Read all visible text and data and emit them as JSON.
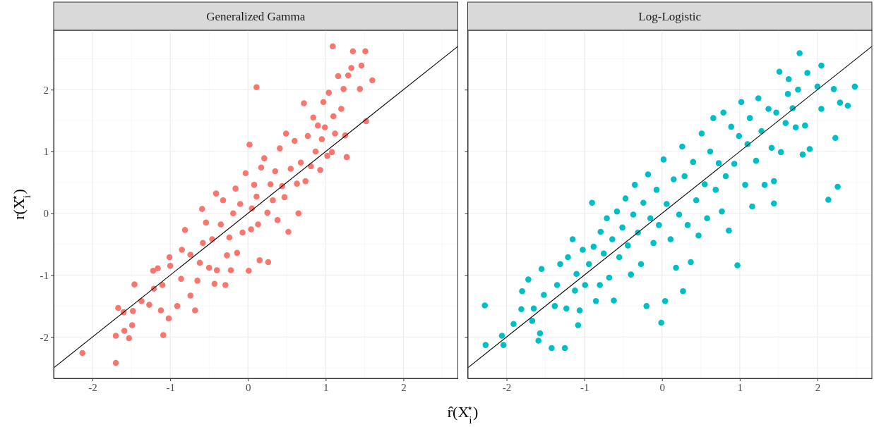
{
  "chart_data": [
    {
      "type": "scatter",
      "title": "Generalized Gamma",
      "xlabel": "r̂(X$_{i}$$^{⋆}$)",
      "ylabel": "r(X$_{i}$$^{⋆}$)",
      "xlim": [
        -2.5,
        2.7
      ],
      "ylim": [
        -2.67,
        2.96
      ],
      "xticks": [
        -2,
        -1,
        0,
        1,
        2
      ],
      "yticks": [
        -2,
        -1,
        0,
        1,
        2
      ],
      "grid": true,
      "series": [
        {
          "color": "#f8766d",
          "marker": "circle",
          "x": [
            -2.13,
            -1.7,
            -1.7,
            -1.59,
            -1.53,
            -1.49,
            -1.67,
            -1.6,
            -1.48,
            -1.46,
            -1.37,
            -1.27,
            -1.21,
            -1.22,
            -1.16,
            -1.1,
            -1.09,
            -1.02,
            -1.01,
            -1.0,
            -1.12,
            -0.91,
            -0.86,
            -0.85,
            -0.81,
            -0.74,
            -0.74,
            -0.68,
            -0.65,
            -0.62,
            -0.58,
            -0.59,
            -0.54,
            -0.5,
            -0.46,
            -0.43,
            -0.4,
            -0.41,
            -0.35,
            -0.32,
            -0.29,
            -0.27,
            -0.24,
            -0.22,
            -0.19,
            -0.16,
            -0.14,
            -0.1,
            -0.07,
            -0.03,
            0.01,
            0.02,
            0.04,
            0.05,
            0.08,
            0.11,
            0.13,
            0.15,
            0.17,
            0.21,
            0.25,
            0.26,
            0.29,
            0.32,
            0.35,
            0.38,
            0.41,
            0.44,
            0.47,
            0.49,
            0.52,
            0.55,
            0.6,
            0.63,
            0.65,
            0.68,
            0.72,
            0.74,
            0.77,
            0.81,
            0.84,
            0.87,
            0.9,
            0.93,
            0.95,
            0.97,
            0.99,
            1.02,
            1.04,
            1.08,
            1.1,
            1.12,
            1.16,
            1.2,
            1.23,
            1.25,
            1.27,
            1.29,
            1.33,
            1.09,
            1.35,
            1.44,
            1.46,
            1.51,
            1.52,
            1.6,
            0.11
          ],
          "values": [
            -2.26,
            -2.42,
            -1.98,
            -1.9,
            -2.02,
            -1.81,
            -1.53,
            -1.6,
            -1.58,
            -1.15,
            -1.42,
            -1.48,
            -1.22,
            -0.93,
            -0.89,
            -1.16,
            -1.97,
            -1.7,
            -0.71,
            -0.85,
            -1.57,
            -1.5,
            -1.06,
            -0.59,
            -0.27,
            -1.33,
            -0.67,
            -1.57,
            -1.09,
            -0.8,
            -0.48,
            0.07,
            -0.15,
            -0.88,
            -0.42,
            -1.14,
            -0.92,
            0.32,
            -0.18,
            0.21,
            -1.16,
            -0.68,
            -0.39,
            -0.92,
            0.0,
            0.4,
            -0.64,
            0.15,
            -0.31,
            0.65,
            -0.93,
            1.11,
            -0.26,
            0.08,
            0.46,
            0.27,
            -0.18,
            -0.76,
            0.74,
            0.89,
            0.01,
            -0.79,
            0.47,
            0.21,
            0.68,
            -0.11,
            1.05,
            0.44,
            0.26,
            1.29,
            -0.3,
            0.72,
            1.17,
            0.48,
            0.0,
            0.82,
            1.78,
            0.52,
            1.25,
            0.76,
            1.55,
            1.0,
            1.42,
            0.7,
            1.2,
            1.8,
            1.39,
            0.93,
            1.95,
            0.99,
            1.57,
            1.29,
            2.22,
            1.69,
            2.01,
            1.26,
            0.91,
            2.23,
            2.35,
            2.7,
            2.62,
            2.01,
            2.39,
            2.62,
            1.49,
            2.15,
            2.04
          ]
        },
        {
          "type": "line",
          "color": "#000000",
          "marker": "none",
          "x": [
            -2.5,
            2.7
          ],
          "values": [
            -2.5,
            2.7
          ]
        }
      ]
    },
    {
      "type": "scatter",
      "title": "Log-Logistic",
      "xlim": [
        -2.5,
        2.7
      ],
      "ylim": [
        -2.67,
        2.96
      ],
      "xticks": [
        -2,
        -1,
        0,
        1,
        2
      ],
      "yticks": [
        -2,
        -1,
        0,
        1,
        2
      ],
      "grid": true,
      "tick_labels": "x",
      "series": [
        {
          "color": "#00bfc4",
          "marker": "circle",
          "x": [
            -2.28,
            -2.27,
            -2.06,
            -2.04,
            -1.91,
            -1.8,
            -1.81,
            -1.72,
            -1.67,
            -1.65,
            -1.59,
            -1.57,
            -1.55,
            -1.52,
            -1.42,
            -1.38,
            -1.35,
            -1.31,
            -1.25,
            -1.23,
            -1.21,
            -1.15,
            -1.12,
            -1.1,
            -1.08,
            -1.06,
            -1.02,
            -0.99,
            -0.94,
            -0.9,
            -0.88,
            -0.85,
            -0.8,
            -0.79,
            -0.75,
            -0.71,
            -0.68,
            -0.64,
            -0.62,
            -0.58,
            -0.55,
            -0.51,
            -0.47,
            -0.44,
            -0.4,
            -0.37,
            -0.35,
            -0.31,
            -0.27,
            -0.24,
            -0.2,
            -0.18,
            -0.15,
            -0.11,
            -0.07,
            -0.04,
            -0.01,
            0.02,
            0.04,
            0.06,
            0.11,
            0.15,
            0.18,
            0.22,
            0.26,
            0.27,
            0.29,
            0.33,
            0.37,
            0.4,
            0.44,
            0.47,
            0.51,
            0.55,
            0.58,
            0.62,
            0.66,
            0.69,
            0.73,
            0.77,
            0.79,
            0.82,
            0.86,
            0.89,
            0.93,
            0.97,
            0.99,
            1.02,
            1.07,
            1.1,
            1.13,
            1.16,
            1.21,
            1.24,
            1.28,
            1.32,
            1.37,
            1.41,
            1.44,
            1.47,
            1.44,
            1.51,
            1.53,
            1.59,
            1.62,
            1.63,
            1.68,
            1.72,
            1.75,
            1.77,
            1.81,
            1.84,
            1.87,
            1.9,
            2.0,
            2.05,
            2.05,
            2.14,
            2.21,
            2.23,
            2.26,
            2.29,
            2.39,
            2.48
          ],
          "values": [
            -1.49,
            -2.13,
            -1.98,
            -2.13,
            -1.79,
            -1.26,
            -1.55,
            -1.07,
            -1.74,
            -1.54,
            -2.06,
            -1.94,
            -0.9,
            -1.32,
            -2.18,
            -1.5,
            -1.16,
            -0.82,
            -2.18,
            -1.54,
            -0.71,
            -0.42,
            -1.25,
            -0.98,
            -1.81,
            -1.57,
            -0.59,
            -1.16,
            -0.82,
            0.17,
            -0.54,
            -1.42,
            -1.16,
            -0.3,
            -0.65,
            -0.08,
            -1.04,
            -0.42,
            -1.41,
            0.03,
            -0.71,
            -0.23,
            0.24,
            -0.52,
            -0.99,
            -0.02,
            0.46,
            -0.31,
            -0.82,
            0.17,
            -1.5,
            0.63,
            -0.08,
            -0.48,
            0.38,
            -0.19,
            -1.77,
            0.87,
            -1.42,
            0.15,
            -0.42,
            0.55,
            -0.88,
            -0.02,
            1.08,
            -1.26,
            0.6,
            -0.19,
            -0.79,
            0.83,
            0.21,
            -0.36,
            1.29,
            0.47,
            -0.08,
            1.0,
            1.54,
            0.38,
            0.81,
            0.03,
            1.63,
            0.6,
            -0.28,
            1.4,
            0.8,
            -0.84,
            1.25,
            1.8,
            0.46,
            1.12,
            1.54,
            0.11,
            0.85,
            1.86,
            1.33,
            0.46,
            1.69,
            1.06,
            0.52,
            1.63,
            0.16,
            2.29,
            0.99,
            1.46,
            1.93,
            2.17,
            1.7,
            1.39,
            2.0,
            2.59,
            0.95,
            1.42,
            2.27,
            1.04,
            2.05,
            2.39,
            1.69,
            0.22,
            2.01,
            1.22,
            0.43,
            1.79,
            1.74,
            2.05
          ]
        },
        {
          "type": "line",
          "color": "#000000",
          "marker": "none",
          "x": [
            -2.5,
            2.7
          ],
          "values": [
            -2.5,
            2.7
          ]
        }
      ]
    }
  ]
}
